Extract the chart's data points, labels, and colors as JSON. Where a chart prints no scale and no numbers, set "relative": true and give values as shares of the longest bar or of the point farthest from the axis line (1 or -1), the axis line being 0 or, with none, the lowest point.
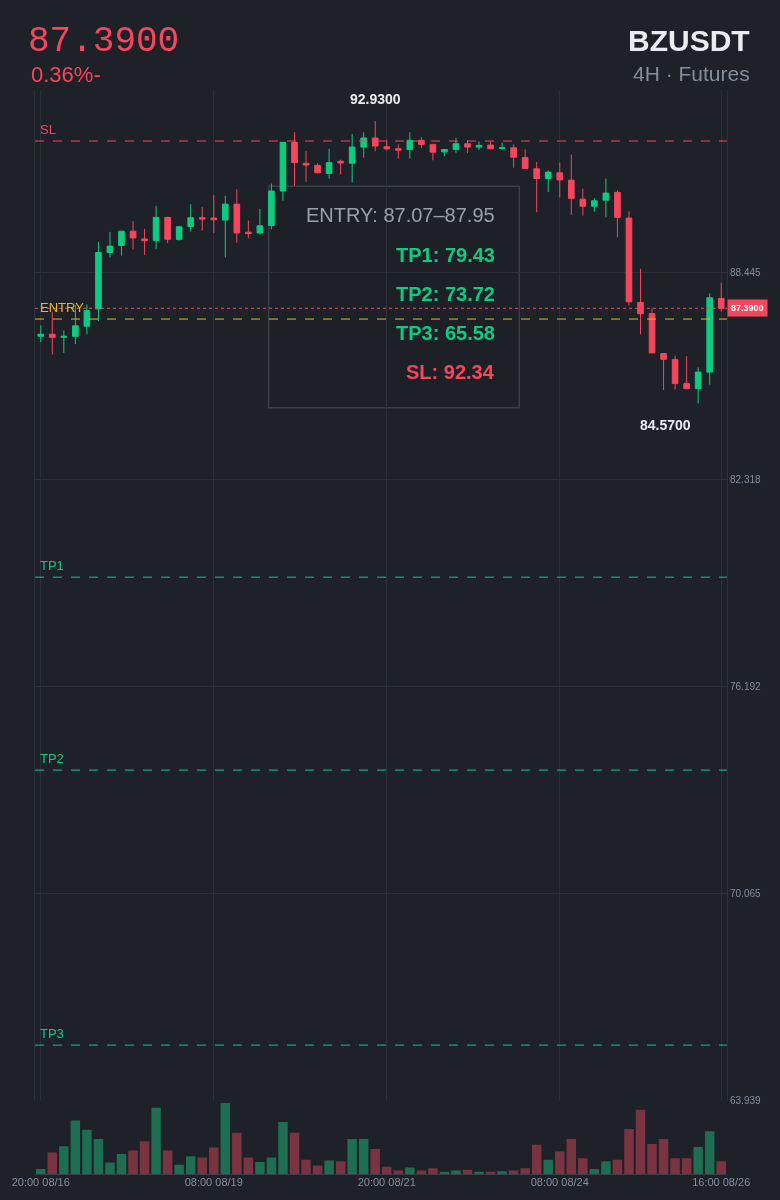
{
  "chart_data": [
    {
      "type": "candlestick",
      "title": "87.3900",
      "subtitle": "0.36%-",
      "categories": [
        "20:00 08/16",
        null,
        null,
        null,
        null,
        null,
        null,
        null,
        null,
        null,
        null,
        null,
        null,
        null,
        null,
        "08:00 08/19",
        null,
        null,
        null,
        null,
        null,
        null,
        null,
        null,
        null,
        null,
        null,
        null,
        null,
        null,
        "20:00 08/21",
        null,
        null,
        null,
        null,
        null,
        null,
        null,
        null,
        null,
        null,
        null,
        null,
        null,
        null,
        "08:00 08/24",
        null,
        null,
        null,
        null,
        null,
        null,
        null,
        null,
        null,
        null,
        null,
        null,
        null,
        "16:00 08/26"
      ],
      "ohlc": [
        [
          86.56,
          86.88,
          86.39,
          86.62
        ],
        [
          86.62,
          87.27,
          86.02,
          86.53
        ],
        [
          86.53,
          86.73,
          86.07,
          86.56
        ],
        [
          86.56,
          87.48,
          86.33,
          86.87
        ],
        [
          86.86,
          87.5,
          86.62,
          87.32
        ],
        [
          87.37,
          89.36,
          87.01,
          89.04
        ],
        [
          89.04,
          89.65,
          88.89,
          89.23
        ],
        [
          89.25,
          89.67,
          88.95,
          89.67
        ],
        [
          89.67,
          89.97,
          89.13,
          89.47
        ],
        [
          89.44,
          89.74,
          88.97,
          89.39
        ],
        [
          89.39,
          90.42,
          89.14,
          90.08
        ],
        [
          90.08,
          90.08,
          89.32,
          89.43
        ],
        [
          89.43,
          89.83,
          89.39,
          89.8
        ],
        [
          89.81,
          90.47,
          89.66,
          90.07
        ],
        [
          90.07,
          90.39,
          89.69,
          90.03
        ],
        [
          90.06,
          90.74,
          89.62,
          90.01
        ],
        [
          90.0,
          90.72,
          88.89,
          90.47
        ],
        [
          90.47,
          90.91,
          89.33,
          89.62
        ],
        [
          89.64,
          89.99,
          89.46,
          89.6
        ],
        [
          89.62,
          90.33,
          89.57,
          89.83
        ],
        [
          89.84,
          91.08,
          89.72,
          90.86
        ],
        [
          90.86,
          92.3,
          90.57,
          92.3
        ],
        [
          92.3,
          92.6,
          91.01,
          91.7
        ],
        [
          91.68,
          92.04,
          91.13,
          91.63
        ],
        [
          91.62,
          91.68,
          91.38,
          91.4
        ],
        [
          91.38,
          92.11,
          91.23,
          91.7
        ],
        [
          91.74,
          91.79,
          91.35,
          91.69
        ],
        [
          91.68,
          92.55,
          91.11,
          92.16
        ],
        [
          92.16,
          92.6,
          91.85,
          92.43
        ],
        [
          92.43,
          92.93,
          92.04,
          92.19
        ],
        [
          92.17,
          92.38,
          92.06,
          92.11
        ],
        [
          92.11,
          92.24,
          91.82,
          92.07
        ],
        [
          92.09,
          92.6,
          91.82,
          92.36
        ],
        [
          92.36,
          92.45,
          92.14,
          92.24
        ],
        [
          92.24,
          92.24,
          91.77,
          92.01
        ],
        [
          92.02,
          92.09,
          91.89,
          92.09
        ],
        [
          92.09,
          92.43,
          91.99,
          92.26
        ],
        [
          92.26,
          92.36,
          91.99,
          92.16
        ],
        [
          92.16,
          92.33,
          92.07,
          92.21
        ],
        [
          92.22,
          92.33,
          92.11,
          92.11
        ],
        [
          92.12,
          92.29,
          92.07,
          92.14
        ],
        [
          92.14,
          92.24,
          91.55,
          91.86
        ],
        [
          91.85,
          92.09,
          91.53,
          91.53
        ],
        [
          91.52,
          91.72,
          90.23,
          91.23
        ],
        [
          91.23,
          91.47,
          90.83,
          91.42
        ],
        [
          91.4,
          91.7,
          90.67,
          91.19
        ],
        [
          91.18,
          91.94,
          90.15,
          90.64
        ],
        [
          90.62,
          90.93,
          90.13,
          90.41
        ],
        [
          90.41,
          90.65,
          90.25,
          90.57
        ],
        [
          90.59,
          91.23,
          90.08,
          90.8
        ],
        [
          90.82,
          90.88,
          89.49,
          90.08
        ],
        [
          90.06,
          90.26,
          87.47,
          87.58
        ],
        [
          87.56,
          88.56,
          86.62,
          87.23
        ],
        [
          87.23,
          87.39,
          86.07,
          86.07
        ],
        [
          86.05,
          86.05,
          84.97,
          85.88
        ],
        [
          85.87,
          85.99,
          84.99,
          85.16
        ],
        [
          85.16,
          85.97,
          84.99,
          85.01
        ],
        [
          85.01,
          85.64,
          84.57,
          85.5
        ],
        [
          85.5,
          87.83,
          85.13,
          87.7
        ],
        [
          87.68,
          88.15,
          87.29,
          87.39
        ]
      ],
      "colors": [
        "#0ecb81",
        "#f6465d",
        "#0ecb81",
        "#0ecb81",
        "#0ecb81",
        "#0ecb81",
        "#0ecb81",
        "#0ecb81",
        "#f6465d",
        "#f6465d",
        "#0ecb81",
        "#f6465d",
        "#0ecb81",
        "#0ecb81",
        "#f6465d",
        "#f6465d",
        "#0ecb81",
        "#f6465d",
        "#f6465d",
        "#0ecb81",
        "#0ecb81",
        "#0ecb81",
        "#f6465d",
        "#f6465d",
        "#f6465d",
        "#0ecb81",
        "#f6465d",
        "#0ecb81",
        "#0ecb81",
        "#f6465d",
        "#f6465d",
        "#f6465d",
        "#0ecb81",
        "#f6465d",
        "#f6465d",
        "#0ecb81",
        "#0ecb81",
        "#f6465d",
        "#0ecb81",
        "#f6465d",
        "#0ecb81",
        "#f6465d",
        "#f6465d",
        "#f6465d",
        "#0ecb81",
        "#f6465d",
        "#f6465d",
        "#f6465d",
        "#0ecb81",
        "#0ecb81",
        "#f6465d",
        "#f6465d",
        "#f6465d",
        "#f6465d",
        "#f6465d",
        "#f6465d",
        "#f6465d",
        "#0ecb81",
        "#0ecb81",
        "#f6465d"
      ],
      "ylim": [
        63.939,
        93.85
      ],
      "yticks": [
        63.939,
        70.065,
        76.192,
        82.318,
        88.445
      ],
      "grid": true,
      "ref_lines": [
        {
          "axis": "y",
          "value": 92.34,
          "label": "SL",
          "color": "#f6465d",
          "line_style": "dashed"
        },
        {
          "axis": "y",
          "value": 87.39,
          "color": "#f6465d",
          "line_style": "dotted"
        },
        {
          "axis": "y",
          "value": 87.07,
          "label": "ENTRY",
          "color": "#f0b90b",
          "line_style": "dashed"
        },
        {
          "axis": "y",
          "value": 79.43,
          "label": "TP1",
          "color": "#0ecb81",
          "line_style": "dashed"
        },
        {
          "axis": "y",
          "value": 73.72,
          "label": "TP2",
          "color": "#0ecb81",
          "line_style": "dashed"
        },
        {
          "axis": "y",
          "value": 65.58,
          "label": "TP3",
          "color": "#0ecb81",
          "line_style": "dashed"
        }
      ],
      "annotations": [
        "BZUSDT",
        "4H · Futures",
        "ENTRY: 87.07–87.95",
        "TP1: 79.43",
        "TP2: 73.72",
        "TP3: 65.58",
        "SL: 92.34",
        {
          "text": "92.9300",
          "y": 92.93
        },
        "84.5700",
        {
          "text": "87.3900",
          "y": 87.39
        }
      ]
    },
    {
      "type": "bar",
      "relative": true,
      "categories": [
        null,
        null,
        null,
        null,
        null,
        null,
        null,
        null,
        null,
        null,
        null,
        null,
        null,
        null,
        null,
        null,
        null,
        null,
        null,
        null,
        null,
        null,
        null,
        null,
        null,
        null,
        null,
        null,
        null,
        null,
        null,
        null,
        null,
        null,
        null,
        null,
        null,
        null,
        null,
        null,
        null,
        null,
        null,
        null,
        null,
        null,
        null,
        null,
        null,
        null,
        null,
        null,
        null,
        null,
        null,
        null,
        null,
        null,
        null,
        null
      ],
      "values": [
        0.07,
        0.3,
        0.39,
        0.75,
        0.62,
        0.49,
        0.16,
        0.28,
        0.33,
        0.46,
        0.93,
        0.33,
        0.13,
        0.25,
        0.23,
        0.37,
        1,
        0.58,
        0.23,
        0.17,
        0.23,
        0.73,
        0.58,
        0.2,
        0.12,
        0.19,
        0.18,
        0.49,
        0.49,
        0.35,
        0.1,
        0.05,
        0.09,
        0.05,
        0.08,
        0.03,
        0.05,
        0.06,
        0.03,
        0.03,
        0.04,
        0.05,
        0.08,
        0.41,
        0.2,
        0.32,
        0.49,
        0.22,
        0.07,
        0.18,
        0.2,
        0.63,
        0.9,
        0.42,
        0.49,
        0.22,
        0.22,
        0.38,
        0.6,
        0.18
      ],
      "colors": [
        "#1d6e52",
        "#7a3441",
        "#1d6e52",
        "#1d6e52",
        "#1d6e52",
        "#1d6e52",
        "#1d6e52",
        "#1d6e52",
        "#7a3441",
        "#7a3441",
        "#1d6e52",
        "#7a3441",
        "#1d6e52",
        "#1d6e52",
        "#7a3441",
        "#7a3441",
        "#1d6e52",
        "#7a3441",
        "#7a3441",
        "#1d6e52",
        "#1d6e52",
        "#1d6e52",
        "#7a3441",
        "#7a3441",
        "#7a3441",
        "#1d6e52",
        "#7a3441",
        "#1d6e52",
        "#1d6e52",
        "#7a3441",
        "#7a3441",
        "#7a3441",
        "#1d6e52",
        "#7a3441",
        "#7a3441",
        "#1d6e52",
        "#1d6e52",
        "#7a3441",
        "#1d6e52",
        "#7a3441",
        "#1d6e52",
        "#7a3441",
        "#7a3441",
        "#7a3441",
        "#1d6e52",
        "#7a3441",
        "#7a3441",
        "#7a3441",
        "#1d6e52",
        "#1d6e52",
        "#7a3441",
        "#7a3441",
        "#7a3441",
        "#7a3441",
        "#7a3441",
        "#7a3441",
        "#7a3441",
        "#1d6e52",
        "#1d6e52",
        "#7a3441"
      ]
    }
  ]
}
